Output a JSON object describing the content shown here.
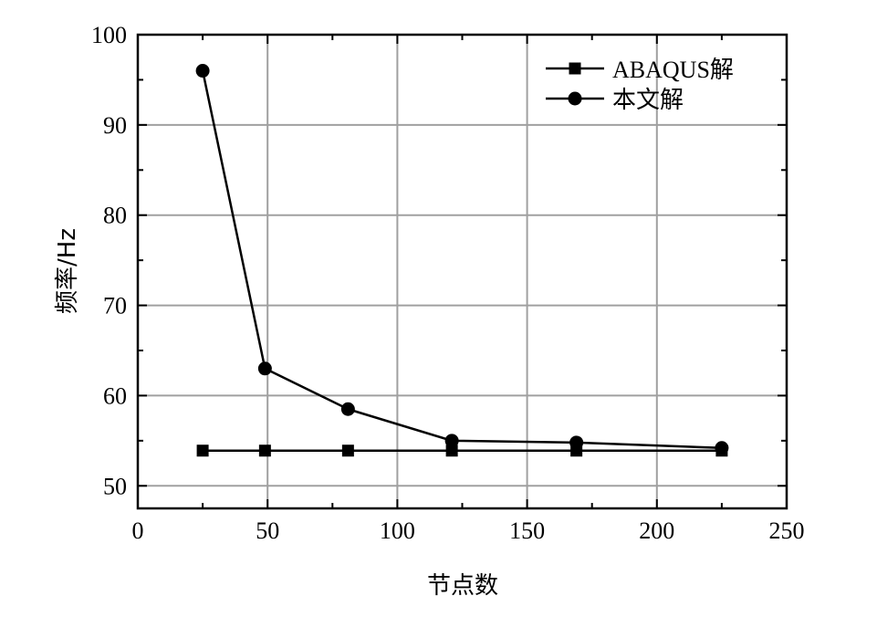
{
  "chart_data": {
    "type": "line",
    "xlabel": "节点数",
    "ylabel": "频率/Hz",
    "xlim": [
      0,
      250
    ],
    "ylim": [
      47.5,
      100
    ],
    "xticks": [
      0,
      50,
      100,
      150,
      200,
      250
    ],
    "yticks": [
      50,
      60,
      70,
      80,
      90,
      100
    ],
    "grid": true,
    "legend_position": "top-right",
    "series": [
      {
        "name": "ABAQUS解",
        "marker": "square",
        "color": "#000000",
        "x": [
          25,
          49,
          81,
          121,
          169,
          225
        ],
        "y": [
          53.9,
          53.9,
          53.9,
          53.9,
          53.9,
          53.9
        ]
      },
      {
        "name": "本文解",
        "marker": "circle",
        "color": "#000000",
        "x": [
          25,
          49,
          81,
          121,
          169,
          225
        ],
        "y": [
          96.0,
          63.0,
          58.5,
          55.0,
          54.8,
          54.2
        ]
      }
    ]
  }
}
